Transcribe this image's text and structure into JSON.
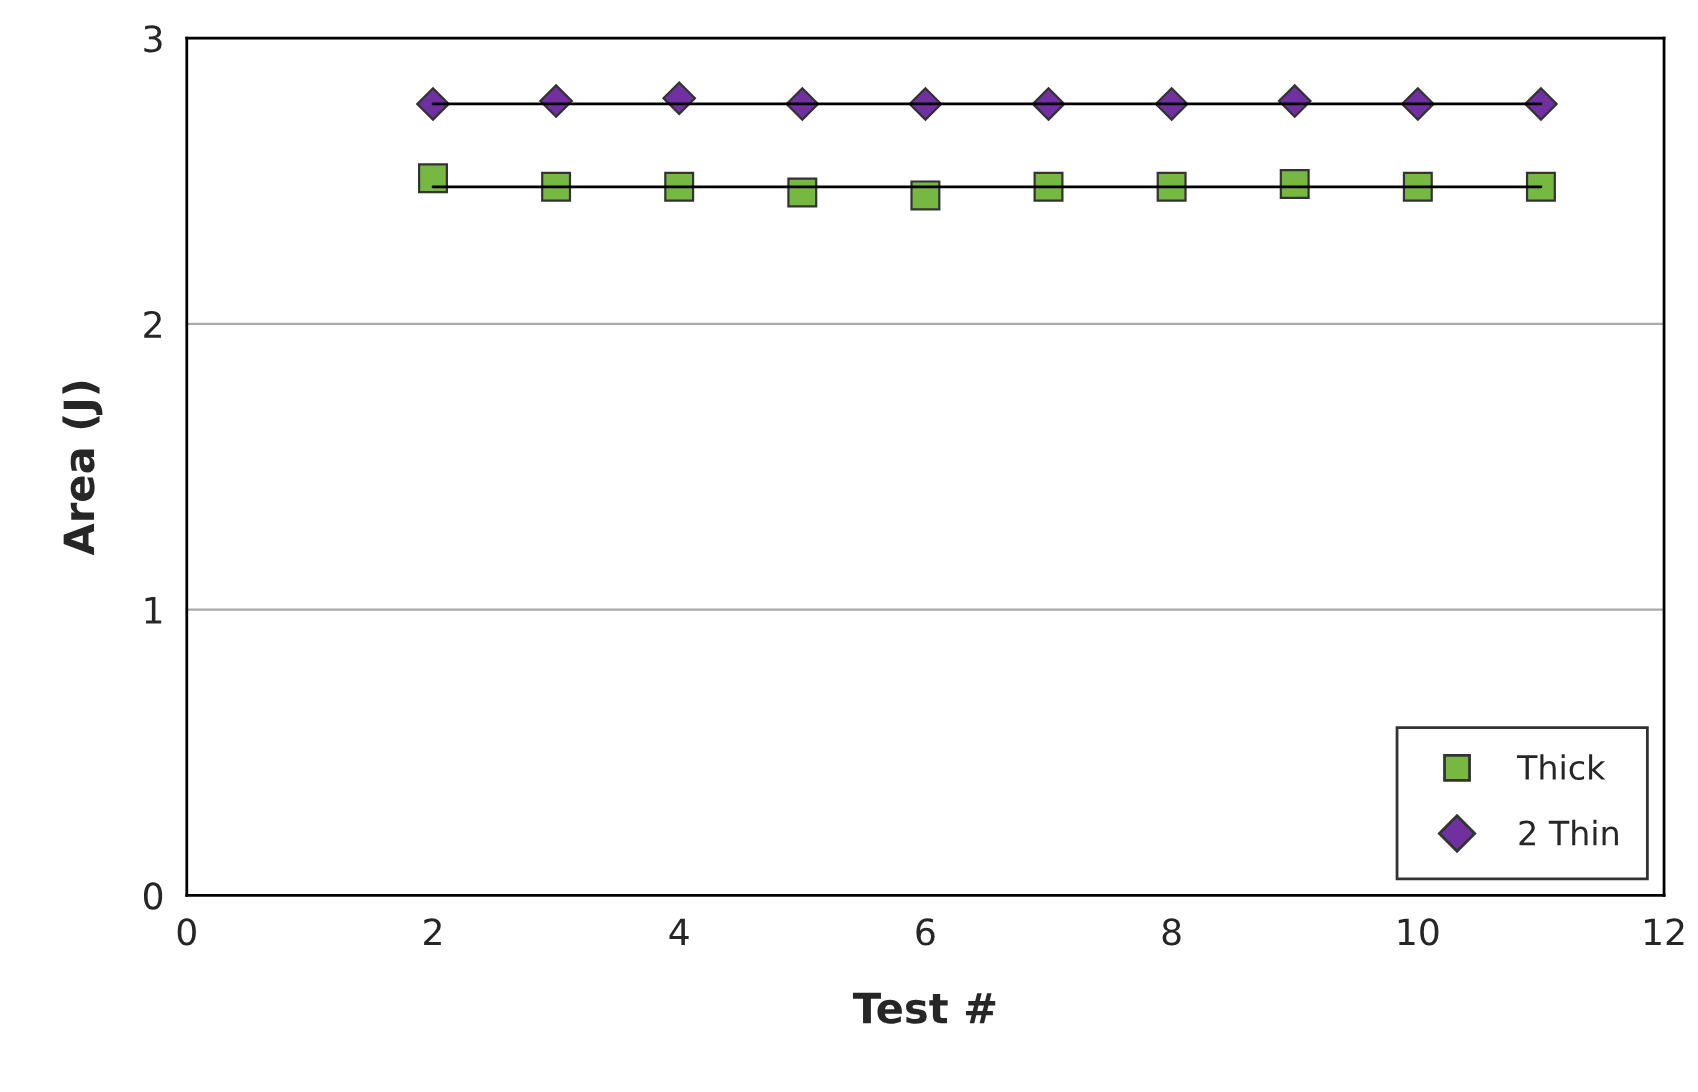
{
  "chart_data": {
    "type": "scatter",
    "xlabel": "Test #",
    "ylabel": "Area (J)",
    "x": [
      2,
      3,
      4,
      5,
      6,
      7,
      8,
      9,
      10,
      11
    ],
    "series": [
      {
        "name": "Thick",
        "color": "#77b843",
        "marker": "square",
        "values": [
          2.51,
          2.48,
          2.48,
          2.46,
          2.45,
          2.48,
          2.48,
          2.49,
          2.48,
          2.48
        ]
      },
      {
        "name": "2 Thin",
        "color": "#7030a0",
        "marker": "diamond",
        "values": [
          2.77,
          2.78,
          2.79,
          2.77,
          2.77,
          2.77,
          2.77,
          2.78,
          2.77,
          2.77
        ]
      },
      {
        "type": "line",
        "color": "#000000",
        "values": [
          2.48,
          2.48,
          2.48,
          2.48,
          2.48,
          2.48,
          2.48,
          2.48,
          2.48,
          2.48
        ]
      },
      {
        "type": "line",
        "color": "#000000",
        "values": [
          2.77,
          2.77,
          2.77,
          2.77,
          2.77,
          2.77,
          2.77,
          2.77,
          2.77,
          2.77
        ]
      }
    ],
    "xlim": [
      0,
      12
    ],
    "xticks": [
      0,
      2,
      4,
      6,
      8,
      10,
      12
    ],
    "ylim": [
      0,
      3
    ],
    "yticks": [
      0,
      1,
      2,
      3
    ],
    "grid": "y",
    "legend": "bottom right"
  }
}
